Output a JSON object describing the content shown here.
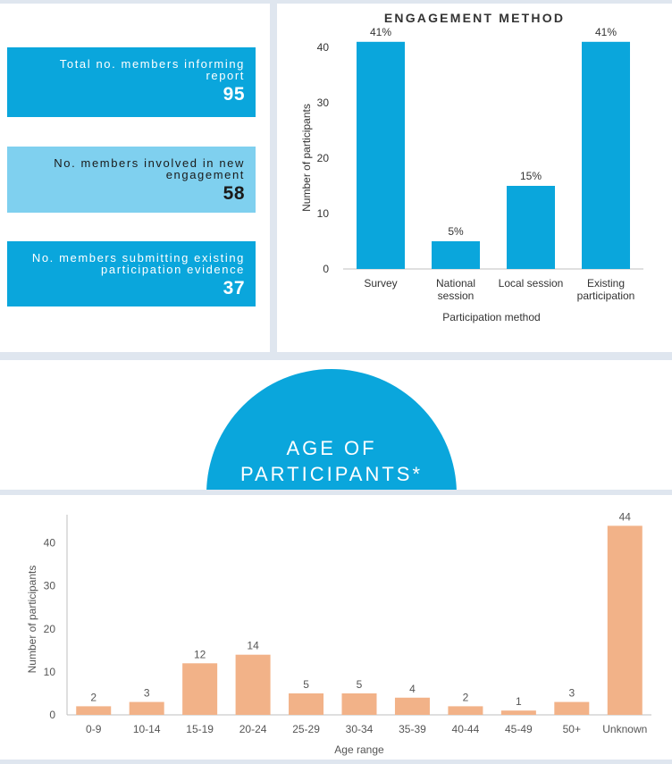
{
  "stats": [
    {
      "label": "Total no. members informing report",
      "value": "95"
    },
    {
      "label": "No. members involved in new engagement",
      "value": "58"
    },
    {
      "label": "No. members submitting existing participation evidence",
      "value": "37"
    }
  ],
  "colors": {
    "dark_blue": "#0aa6dc",
    "light_blue": "#7fd0ef",
    "orange": "#f2b288",
    "bar_label": "#555555"
  },
  "age_section": {
    "title_line1": "AGE OF",
    "title_line2": "PARTICIPANTS*"
  },
  "chart_data": [
    {
      "type": "bar",
      "title": "ENGAGEMENT METHOD",
      "xlabel": "Participation method",
      "ylabel": "Number of participants",
      "categories": [
        [
          "Survey"
        ],
        [
          "National",
          "session"
        ],
        [
          "Local session"
        ],
        [
          "Existing",
          "participation"
        ]
      ],
      "values": [
        41,
        5,
        15,
        41
      ],
      "data_labels": [
        "41%",
        "5%",
        "15%",
        "41%"
      ],
      "ylim": [
        0,
        45
      ],
      "yticks": [
        0,
        10,
        20,
        30,
        40
      ],
      "grid": false,
      "color": "#0aa6dc"
    },
    {
      "type": "bar",
      "title": "",
      "xlabel": "Age range",
      "ylabel": "Number of participants",
      "categories": [
        "0-9",
        "10-14",
        "15-19",
        "20-24",
        "25-29",
        "30-34",
        "35-39",
        "40-44",
        "45-49",
        "50+",
        "Unknown"
      ],
      "values": [
        2,
        3,
        12,
        14,
        5,
        5,
        4,
        2,
        1,
        3,
        44
      ],
      "ylim": [
        0,
        47
      ],
      "yticks": [
        0,
        10,
        20,
        30,
        40
      ],
      "grid": false,
      "color": "#f2b288"
    }
  ]
}
